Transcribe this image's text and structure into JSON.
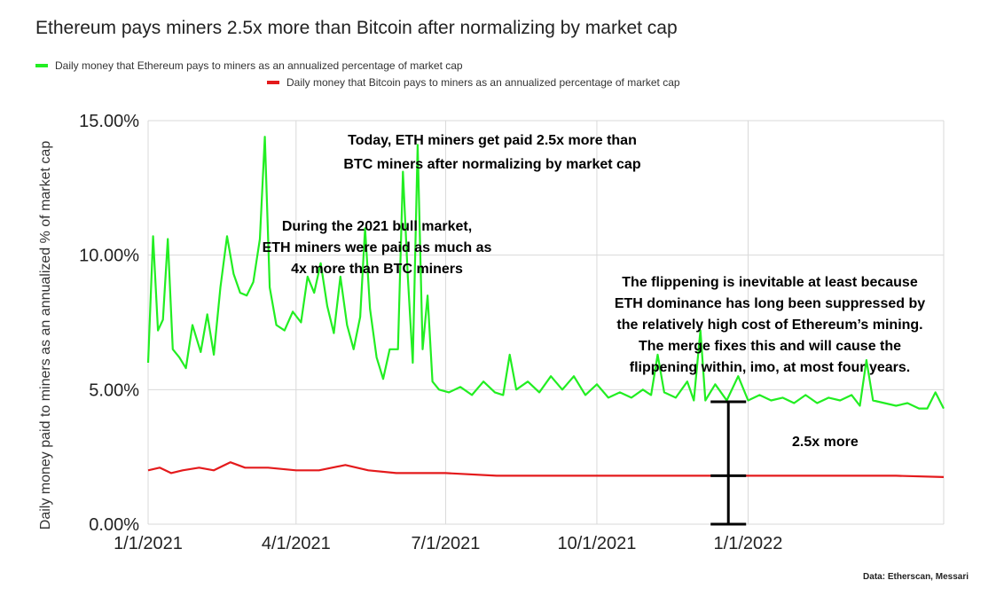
{
  "chart_data": {
    "type": "line",
    "title": "Ethereum pays miners 2.5x more than Bitcoin after normalizing by market cap",
    "ylabel": "Daily money paid to miners as an annualized % of market cap",
    "xlabel": "",
    "ylim": [
      0,
      15
    ],
    "y_ticks": [
      "0.00%",
      "5.00%",
      "10.00%",
      "15.00%"
    ],
    "x_ticks": [
      {
        "label": "1/1/2021",
        "date": "2021-01-01"
      },
      {
        "label": "4/1/2021",
        "date": "2021-04-01"
      },
      {
        "label": "7/1/2021",
        "date": "2021-07-01"
      },
      {
        "label": "10/1/2021",
        "date": "2021-10-01"
      },
      {
        "label": "1/1/2022",
        "date": "2022-01-01"
      }
    ],
    "x_range": [
      "2021-01-01",
      "2022-04-30"
    ],
    "grid": "vertical and horizontal",
    "legend_position": "top-left",
    "series": [
      {
        "name": "Daily money that Ethereum pays to miners as an annualized percentage of market cap",
        "color": "#22ee22",
        "points": [
          [
            "2021-01-01",
            6.0
          ],
          [
            "2021-01-04",
            10.7
          ],
          [
            "2021-01-07",
            7.2
          ],
          [
            "2021-01-10",
            7.6
          ],
          [
            "2021-01-13",
            10.6
          ],
          [
            "2021-01-16",
            6.5
          ],
          [
            "2021-01-20",
            6.2
          ],
          [
            "2021-01-24",
            5.8
          ],
          [
            "2021-01-28",
            7.4
          ],
          [
            "2021-02-02",
            6.4
          ],
          [
            "2021-02-06",
            7.8
          ],
          [
            "2021-02-10",
            6.3
          ],
          [
            "2021-02-14",
            8.8
          ],
          [
            "2021-02-18",
            10.7
          ],
          [
            "2021-02-22",
            9.3
          ],
          [
            "2021-02-26",
            8.6
          ],
          [
            "2021-03-02",
            8.5
          ],
          [
            "2021-03-06",
            9.0
          ],
          [
            "2021-03-10",
            10.6
          ],
          [
            "2021-03-13",
            14.4
          ],
          [
            "2021-03-16",
            8.8
          ],
          [
            "2021-03-20",
            7.4
          ],
          [
            "2021-03-25",
            7.2
          ],
          [
            "2021-03-30",
            7.9
          ],
          [
            "2021-04-04",
            7.5
          ],
          [
            "2021-04-08",
            9.2
          ],
          [
            "2021-04-12",
            8.6
          ],
          [
            "2021-04-16",
            9.7
          ],
          [
            "2021-04-20",
            8.1
          ],
          [
            "2021-04-24",
            7.1
          ],
          [
            "2021-04-28",
            9.2
          ],
          [
            "2021-05-02",
            7.4
          ],
          [
            "2021-05-06",
            6.5
          ],
          [
            "2021-05-10",
            7.7
          ],
          [
            "2021-05-13",
            11.0
          ],
          [
            "2021-05-16",
            8.0
          ],
          [
            "2021-05-20",
            6.2
          ],
          [
            "2021-05-24",
            5.4
          ],
          [
            "2021-05-28",
            6.5
          ],
          [
            "2021-06-02",
            6.5
          ],
          [
            "2021-06-05",
            13.1
          ],
          [
            "2021-06-08",
            9.2
          ],
          [
            "2021-06-11",
            6.0
          ],
          [
            "2021-06-14",
            14.1
          ],
          [
            "2021-06-17",
            6.5
          ],
          [
            "2021-06-20",
            8.5
          ],
          [
            "2021-06-23",
            5.3
          ],
          [
            "2021-06-27",
            5.0
          ],
          [
            "2021-07-03",
            4.9
          ],
          [
            "2021-07-10",
            5.1
          ],
          [
            "2021-07-17",
            4.8
          ],
          [
            "2021-07-24",
            5.3
          ],
          [
            "2021-07-31",
            4.9
          ],
          [
            "2021-08-05",
            4.8
          ],
          [
            "2021-08-09",
            6.3
          ],
          [
            "2021-08-13",
            5.0
          ],
          [
            "2021-08-20",
            5.3
          ],
          [
            "2021-08-27",
            4.9
          ],
          [
            "2021-09-03",
            5.5
          ],
          [
            "2021-09-10",
            5.0
          ],
          [
            "2021-09-17",
            5.5
          ],
          [
            "2021-09-24",
            4.8
          ],
          [
            "2021-10-01",
            5.2
          ],
          [
            "2021-10-08",
            4.7
          ],
          [
            "2021-10-15",
            4.9
          ],
          [
            "2021-10-22",
            4.7
          ],
          [
            "2021-10-29",
            5.0
          ],
          [
            "2021-11-03",
            4.8
          ],
          [
            "2021-11-07",
            6.3
          ],
          [
            "2021-11-11",
            4.9
          ],
          [
            "2021-11-18",
            4.7
          ],
          [
            "2021-11-25",
            5.3
          ],
          [
            "2021-11-29",
            4.6
          ],
          [
            "2021-12-03",
            7.2
          ],
          [
            "2021-12-06",
            4.6
          ],
          [
            "2021-12-12",
            5.2
          ],
          [
            "2021-12-19",
            4.6
          ],
          [
            "2021-12-26",
            5.5
          ],
          [
            "2022-01-01",
            4.6
          ],
          [
            "2022-01-08",
            4.8
          ],
          [
            "2022-01-15",
            4.6
          ],
          [
            "2022-01-22",
            4.7
          ],
          [
            "2022-01-29",
            4.5
          ],
          [
            "2022-02-05",
            4.8
          ],
          [
            "2022-02-12",
            4.5
          ],
          [
            "2022-02-19",
            4.7
          ],
          [
            "2022-02-26",
            4.6
          ],
          [
            "2022-03-05",
            4.8
          ],
          [
            "2022-03-10",
            4.4
          ],
          [
            "2022-03-14",
            6.1
          ],
          [
            "2022-03-18",
            4.6
          ],
          [
            "2022-03-25",
            4.5
          ],
          [
            "2022-04-01",
            4.4
          ],
          [
            "2022-04-08",
            4.5
          ],
          [
            "2022-04-15",
            4.3
          ],
          [
            "2022-04-20",
            4.3
          ],
          [
            "2022-04-25",
            4.9
          ],
          [
            "2022-04-30",
            4.3
          ]
        ]
      },
      {
        "name": "Daily money that Bitcoin pays to miners as an annualized percentage of market cap",
        "color": "#e41a1c",
        "points": [
          [
            "2021-01-01",
            2.0
          ],
          [
            "2021-01-08",
            2.1
          ],
          [
            "2021-01-15",
            1.9
          ],
          [
            "2021-01-22",
            2.0
          ],
          [
            "2021-02-01",
            2.1
          ],
          [
            "2021-02-10",
            2.0
          ],
          [
            "2021-02-20",
            2.3
          ],
          [
            "2021-03-01",
            2.1
          ],
          [
            "2021-03-15",
            2.1
          ],
          [
            "2021-04-01",
            2.0
          ],
          [
            "2021-04-15",
            2.0
          ],
          [
            "2021-05-01",
            2.2
          ],
          [
            "2021-05-15",
            2.0
          ],
          [
            "2021-06-01",
            1.9
          ],
          [
            "2021-06-15",
            1.9
          ],
          [
            "2021-07-01",
            1.9
          ],
          [
            "2021-08-01",
            1.8
          ],
          [
            "2021-09-01",
            1.8
          ],
          [
            "2021-10-01",
            1.8
          ],
          [
            "2021-11-01",
            1.8
          ],
          [
            "2021-12-01",
            1.8
          ],
          [
            "2022-01-01",
            1.8
          ],
          [
            "2022-02-01",
            1.8
          ],
          [
            "2022-03-01",
            1.8
          ],
          [
            "2022-04-01",
            1.8
          ],
          [
            "2022-04-30",
            1.75
          ]
        ]
      }
    ],
    "annotations": [
      {
        "lines": [
          "Today, ETH miners get paid 2.5x more than",
          "BTC miners after normalizing by market cap"
        ]
      },
      {
        "lines": [
          "During the 2021 bull market,",
          "ETH miners were paid as much as",
          "4x more than BTC miners"
        ]
      },
      {
        "lines": [
          "The flippening is inevitable at least because",
          "ETH dominance has long been suppressed by",
          "the relatively high cost of Ethereum’s mining.",
          "The merge fixes this and will cause the",
          "flippening within, imo, at most four years."
        ]
      },
      {
        "lines": [
          "2.5x more"
        ]
      }
    ],
    "bracket": {
      "date": "2021-12-20",
      "levels": [
        0,
        1.8,
        4.55
      ]
    },
    "source": "Data: Etherscan, Messari"
  }
}
